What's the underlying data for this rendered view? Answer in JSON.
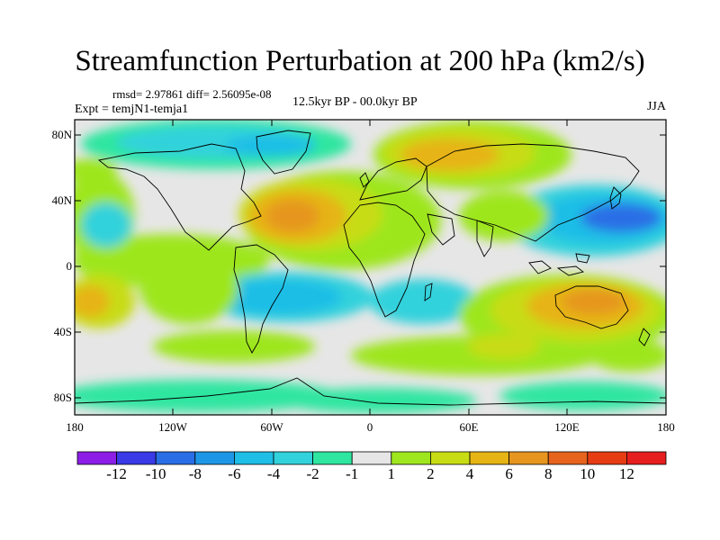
{
  "title": "Streamfunction Perturbation at 200 hPa (km2/s)",
  "rmsd_line": "rmsd= 2.97861 diff= 2.56095e-08",
  "expt_line": "Expt = temjN1-temja1",
  "period": "12.5kyr BP - 00.0kyr BP",
  "season": "JJA",
  "lat_ticks": [
    "80N",
    "40N",
    "0",
    "40S",
    "80S"
  ],
  "lon_ticks": [
    "180",
    "120W",
    "60W",
    "0",
    "60E",
    "120E",
    "180"
  ],
  "colorbar": {
    "labels": [
      "-12",
      "-10",
      "-8",
      "-6",
      "-4",
      "-2",
      "-1",
      "1",
      "2",
      "4",
      "6",
      "8",
      "10",
      "12"
    ],
    "colors": [
      "#8c1ee6",
      "#3a3ae6",
      "#2a6ee6",
      "#1e96e6",
      "#1ebee6",
      "#32d2dc",
      "#2ee6a0",
      "#e6e6e6",
      "#9ee61e",
      "#c8dc14",
      "#e6b414",
      "#e6961e",
      "#e6641e",
      "#e63c14",
      "#e61e1e"
    ]
  },
  "map_data": {
    "projection": "cylindrical equidistant",
    "lat_range": [
      -90,
      90
    ],
    "lon_range": [
      -180,
      180
    ],
    "field": "streamfunction perturbation",
    "units": "km2/s"
  }
}
